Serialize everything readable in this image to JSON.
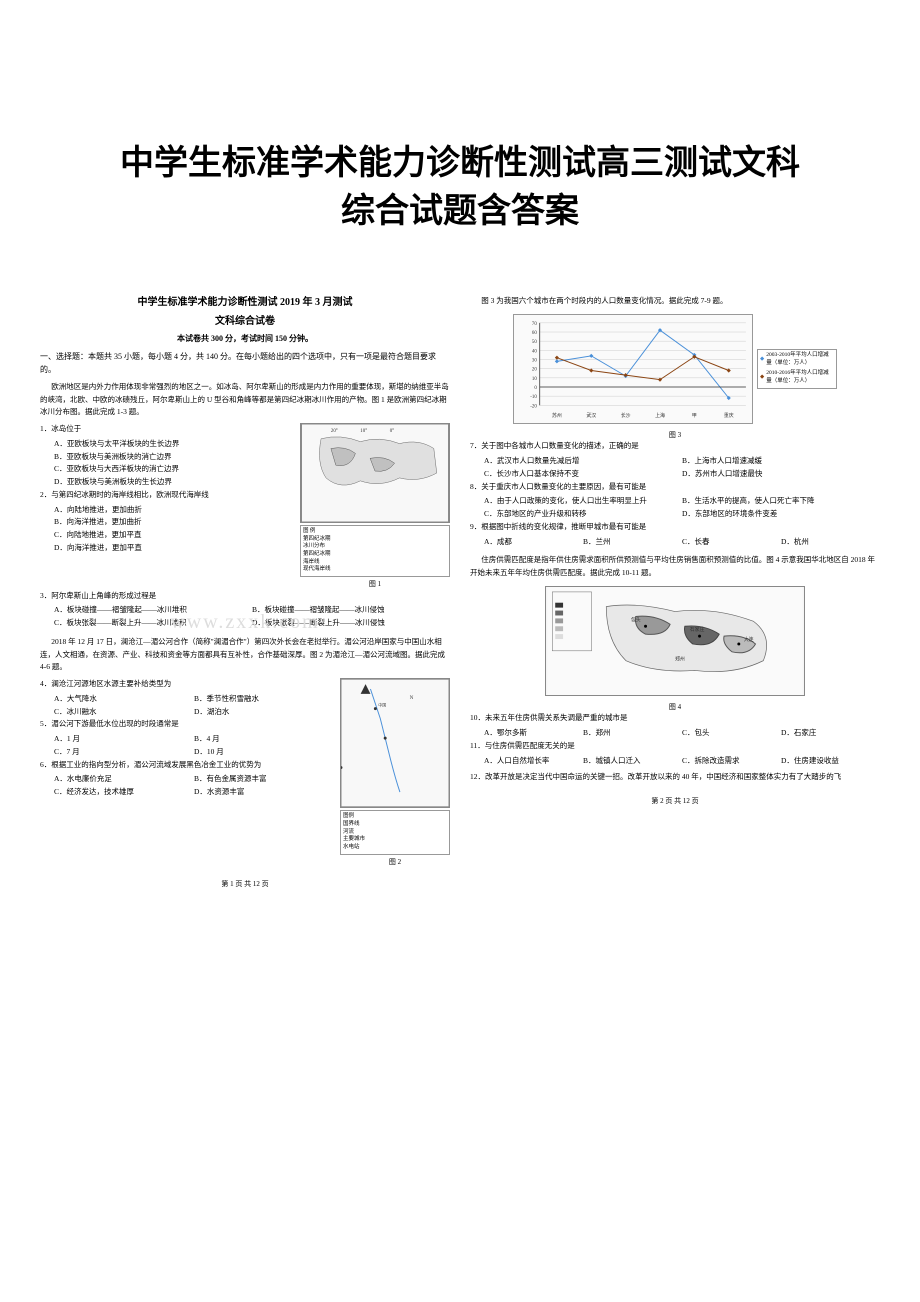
{
  "document_title_line1": "中学生标准学术能力诊断性测试高三测试文科",
  "document_title_line2": "综合试题含答案",
  "watermark_text": "www.zxxk.com",
  "left_page": {
    "inner_title": "中学生标准学术能力诊断性测试 2019 年 3 月测试",
    "sub_title": "文科综合试卷",
    "exam_info": "本试卷共 300 分，考试时间 150 分钟。",
    "section1_header": "一、选择题：本题共 35 小题，每小题 4 分，共 140 分。在每小题给出的四个选项中，只有一项是最符合题目要求的。",
    "intro1": "欧洲地区是内外力作用体现非常强烈的地区之一。如冰岛、阿尔卑斯山的形成是内力作用的重要体现，斯堪的纳维亚半岛的峡湾，北欧、中欧的冰碛残丘，阿尔卑斯山上的 U 型谷和角峰等都是第四纪冰期冰川作用的产物。图 1 是欧洲第四纪冰期冰川分布图。据此完成 1-3 题。",
    "q1": "1．冰岛位于",
    "q1_opts": [
      "A．亚欧板块与太平洋板块的生长边界",
      "B．亚欧板块与美洲板块的消亡边界",
      "C．亚欧板块与大西洋板块的消亡边界",
      "D．亚欧板块与美洲板块的生长边界"
    ],
    "q2": "2．与第四纪冰期时的海岸线相比，欧洲现代海岸线",
    "q2_opts": [
      "A．向陆地推进，更加曲折",
      "B．向海洋推进，更加曲折",
      "C．向陆地推进，更加平直",
      "D．向海洋推进，更加平直"
    ],
    "q3": "3．阿尔卑斯山上角峰的形成过程是",
    "q3_opts_row": [
      "A．板块碰撞——褶皱隆起——冰川堆积",
      "B．板块碰撞——褶皱隆起——冰川侵蚀",
      "C．板块张裂——断裂上升——冰川堆积",
      "D．板块张裂——断裂上升——冰川侵蚀"
    ],
    "intro2": "2018 年 12 月 17 日，澜沧江—湄公河合作（简称\"澜湄合作\"）第四次外长会在老挝举行。湄公河沿岸国家与中国山水相连，人文相通，在资源、产业、科技和资金等方面都具有互补性，合作基础深厚。图 2 为湄沧江—湄公河流域图。据此完成 4-6 题。",
    "q4": "4．澜沧江河源地区水源主要补给类型为",
    "q4_opts_row": [
      "A．大气降水",
      "B．季节性积雪融水",
      "C．冰川融水",
      "D．湖泊水"
    ],
    "q5": "5．湄公河下游最低水位出现的时段通常是",
    "q5_opts_row": [
      "A．1 月",
      "B．4 月",
      "C．7 月",
      "D．10 月"
    ],
    "q6": "6．根据工业的指向型分析，湄公河流域发展黑色冶金工业的优势为",
    "q6_opts_row": [
      "A．水电廉价充足",
      "B．有色金属资源丰富",
      "C．经济发达，技术雄厚",
      "D．水资源丰富"
    ],
    "fig1_caption": "图 1",
    "fig2_caption": "图 2",
    "fig1_legend": [
      "图 例",
      "第四纪冰期",
      "冰川分布",
      "第四纪冰期",
      "海岸线",
      "现代海岸线"
    ],
    "fig2_legend": [
      "图例",
      "国界线",
      "河流",
      "主要城市",
      "水电站"
    ],
    "footer": "第 1 页  共 12 页"
  },
  "right_page": {
    "intro3": "图 3 为我国六个城市在两个时段内的人口数量变化情况。据此完成 7-9 题。",
    "chart": {
      "type": "line",
      "cities": [
        "苏州",
        "武汉",
        "长沙",
        "上海",
        "甲",
        "重庆"
      ],
      "series1_label": "2003-2010年平均人口增减量（单位：万人）",
      "series2_label": "2010-2016年平均人口增减量（单位：万人）",
      "series1_values": [
        28,
        34,
        12,
        62,
        35,
        -12
      ],
      "series2_values": [
        32,
        18,
        13,
        8,
        33,
        18
      ],
      "series1_color": "#4a90d9",
      "series2_color": "#8b4513",
      "ylim": [
        -20,
        70
      ],
      "ytick_step": 10,
      "grid_color": "#cccccc",
      "background_color": "#ffffff"
    },
    "fig3_caption": "图 3",
    "q7": "7．关于图中各城市人口数量变化的描述，正确的是",
    "q7_opts_row": [
      "A．武汉市人口数量先减后增",
      "B．上海市人口增速减缓",
      "C．长沙市人口基本保持不变",
      "D．苏州市人口增速最快"
    ],
    "q8": "8．关于重庆市人口数量变化的主要原因，最有可能是",
    "q8_opts_row": [
      "A．由于人口政策的变化，使人口出生率明显上升",
      "B．生活水平的提高，使人口死亡率下降",
      "C．东部地区的产业升级和转移",
      "D．东部地区的环境条件变差"
    ],
    "q9": "9．根据图中折线的变化规律，推断甲城市最有可能是",
    "q9_opts_row": [
      "A．成都",
      "B．兰州",
      "C．长春",
      "D．杭州"
    ],
    "intro4": "住房供需匹配度是指年供住房需求面积所供预测值与平均住房销售面积预测值的比值。图 4 示意我国华北地区自 2018 年开始未来五年年均住房供需匹配度。据此完成 10-11 题。",
    "fig4_caption": "图 4",
    "fig4_legend_title": "图 例",
    "fig4_legend_items": [
      "1.0~1.0",
      "0.8~0.9",
      "0.5~0.8",
      "0.4~0.5",
      "0.1~0.2"
    ],
    "fig4_cities": [
      "包头",
      "呼和浩特",
      "大连",
      "石家庄",
      "郑州",
      "沈阳"
    ],
    "q10": "10．未来五年住房供需关系失调最严重的城市是",
    "q10_opts_row": [
      "A．鄂尔多斯",
      "B．郑州",
      "C．包头",
      "D．石家庄"
    ],
    "q11": "11．与住房供需匹配度无关的是",
    "q11_opts_row": [
      "A．人口自然增长率",
      "B．城镇人口迁入",
      "C．拆除改造需求",
      "D．住房建设收益"
    ],
    "q12_intro": "12．改革开放是决定当代中国命运的关键一招。改革开放以来的 40 年，中国经济和国家整体实力有了大踏步的飞",
    "footer": "第 2 页  共 12 页"
  },
  "colors": {
    "text": "#000000",
    "background": "#ffffff",
    "border": "#888888",
    "watermark": "#dddddd"
  }
}
